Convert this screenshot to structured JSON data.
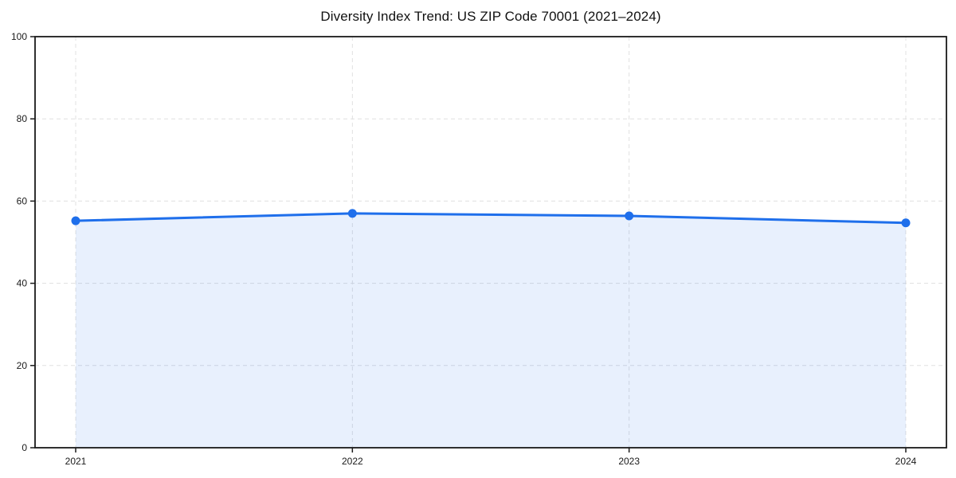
{
  "page": {
    "background_color": "#ffffff"
  },
  "chart_data": {
    "type": "area",
    "title": "Diversity Index Trend: US ZIP Code 70001 (2021–2024)",
    "categories": [
      "2021",
      "2022",
      "2023",
      "2024"
    ],
    "values": [
      55.2,
      57.0,
      56.4,
      54.7
    ],
    "xlabel": "",
    "ylabel": "",
    "ylim": [
      0,
      100
    ],
    "yticks": [
      0,
      20,
      40,
      60,
      80,
      100
    ],
    "grid": "dashed-both-axes",
    "legend": "none",
    "marker": "circle",
    "colors": {
      "line": "#1f6feb",
      "marker": "#1f6feb",
      "fill": "#1f6feb",
      "fill_opacity": 0.1,
      "frame": "#1a1a1a",
      "gridline": "#e0e0e0",
      "tick_text": "#1a1a1a",
      "title_text": "#111111"
    }
  }
}
